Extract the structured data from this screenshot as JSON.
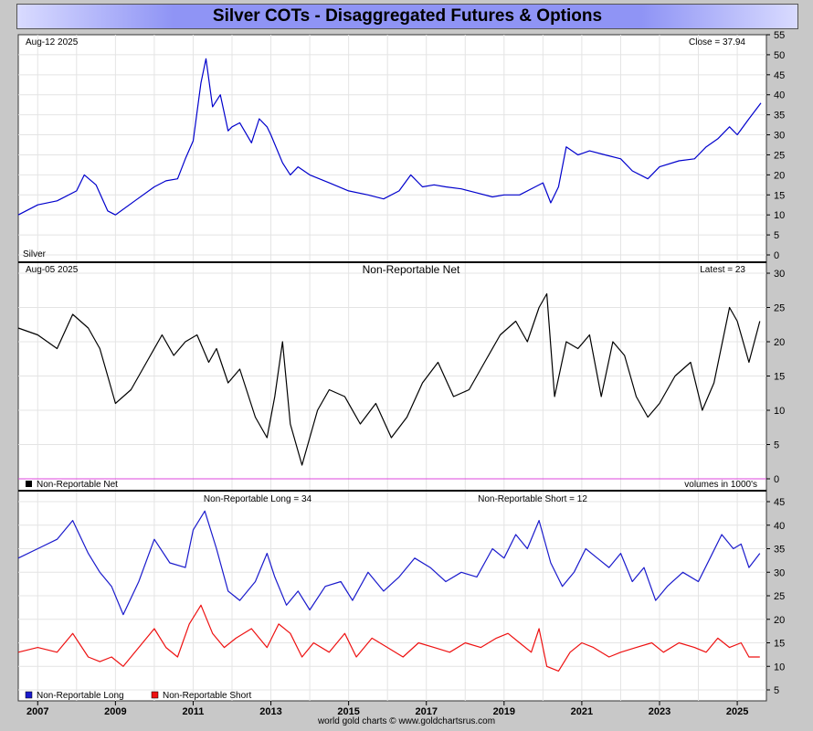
{
  "header": {
    "title": "Silver COTs - Disaggregated Futures & Options"
  },
  "footer": {
    "credit": "world gold charts © www.goldchartsrus.com"
  },
  "colors": {
    "price": "#0000cc",
    "net": "#000000",
    "long": "#1a1acc",
    "short": "#ee1111",
    "zero_line": "#dd44dd"
  },
  "chart_data": [
    {
      "type": "line",
      "name": "silver-price",
      "date_label": "Aug-12  2025",
      "corner_label": "Close = 37.94",
      "series_label": "Silver",
      "ylim": [
        0,
        55
      ],
      "yticks": [
        0,
        5,
        10,
        15,
        20,
        25,
        30,
        35,
        40,
        45,
        50,
        55
      ],
      "x": [
        2006.5,
        2007.0,
        2007.5,
        2008.0,
        2008.2,
        2008.5,
        2008.8,
        2009.0,
        2009.5,
        2010.0,
        2010.3,
        2010.6,
        2010.8,
        2011.0,
        2011.2,
        2011.33,
        2011.5,
        2011.7,
        2011.9,
        2012.0,
        2012.2,
        2012.5,
        2012.7,
        2012.9,
        2013.0,
        2013.3,
        2013.5,
        2013.7,
        2014.0,
        2014.5,
        2015.0,
        2015.5,
        2015.9,
        2016.3,
        2016.6,
        2016.9,
        2017.2,
        2017.5,
        2017.9,
        2018.3,
        2018.7,
        2019.0,
        2019.4,
        2019.8,
        2020.0,
        2020.2,
        2020.4,
        2020.6,
        2020.9,
        2021.2,
        2021.6,
        2022.0,
        2022.3,
        2022.7,
        2023.0,
        2023.5,
        2023.9,
        2024.2,
        2024.5,
        2024.8,
        2025.0,
        2025.3,
        2025.61
      ],
      "values": [
        10,
        12.5,
        13.5,
        16,
        20,
        17.5,
        11,
        10,
        13.5,
        17,
        18.5,
        19,
        24,
        28.5,
        43,
        49,
        37,
        40,
        31,
        32,
        33,
        28,
        34,
        32,
        30,
        23,
        20,
        22,
        20,
        18,
        16,
        15,
        14,
        16,
        20,
        17,
        17.5,
        17,
        16.5,
        15.5,
        14.5,
        15,
        15,
        17,
        18,
        13,
        17,
        27,
        25,
        26,
        25,
        24,
        21,
        19,
        22,
        23.5,
        24,
        27,
        29,
        32,
        30,
        34,
        37.94
      ],
      "xlim": [
        2006.5,
        2025.75
      ]
    },
    {
      "type": "line",
      "name": "non-reportable-net",
      "title": "Non-Reportable Net",
      "date_label": "Aug-05  2025",
      "corner_label": "Latest = 23",
      "legend": "Non-Reportable Net",
      "unit_note": "volumes in 1000's",
      "ylim": [
        0,
        30
      ],
      "yticks": [
        0,
        5,
        10,
        15,
        20,
        25,
        30
      ],
      "x": [
        2006.5,
        2007.0,
        2007.5,
        2007.9,
        2008.3,
        2008.6,
        2008.8,
        2009.0,
        2009.4,
        2009.8,
        2010.2,
        2010.5,
        2010.8,
        2011.1,
        2011.4,
        2011.6,
        2011.9,
        2012.2,
        2012.6,
        2012.9,
        2013.1,
        2013.3,
        2013.5,
        2013.8,
        2014.2,
        2014.5,
        2014.9,
        2015.3,
        2015.7,
        2016.1,
        2016.5,
        2016.9,
        2017.3,
        2017.7,
        2018.1,
        2018.5,
        2018.9,
        2019.3,
        2019.6,
        2019.9,
        2020.1,
        2020.3,
        2020.6,
        2020.9,
        2021.2,
        2021.5,
        2021.8,
        2022.1,
        2022.4,
        2022.7,
        2023.0,
        2023.4,
        2023.8,
        2024.1,
        2024.4,
        2024.8,
        2025.0,
        2025.3,
        2025.58
      ],
      "values": [
        22,
        21,
        19,
        24,
        22,
        19,
        15,
        11,
        13,
        17,
        21,
        18,
        20,
        21,
        17,
        19,
        14,
        16,
        9,
        6,
        12,
        20,
        8,
        2,
        10,
        13,
        12,
        8,
        11,
        6,
        9,
        14,
        17,
        12,
        13,
        17,
        21,
        23,
        20,
        25,
        27,
        12,
        20,
        19,
        21,
        12,
        20,
        18,
        12,
        9,
        11,
        15,
        17,
        10,
        14,
        25,
        23,
        17,
        23
      ],
      "xlim": [
        2006.5,
        2025.75
      ]
    },
    {
      "type": "line",
      "name": "non-reportable-long-short",
      "long_label": "Non-Reportable Long = 34",
      "short_label": "Non-Reportable Short = 12",
      "ylim": [
        5,
        45
      ],
      "yticks": [
        5,
        10,
        15,
        20,
        25,
        30,
        35,
        40,
        45
      ],
      "xticks": [
        "2007",
        "2009",
        "2011",
        "2013",
        "2015",
        "2017",
        "2019",
        "2021",
        "2023",
        "2025"
      ],
      "xtick_values": [
        2007,
        2009,
        2011,
        2013,
        2015,
        2017,
        2019,
        2021,
        2023,
        2025
      ],
      "xlim": [
        2006.5,
        2025.75
      ],
      "series": [
        {
          "name": "Non-Reportable Long",
          "x": [
            2006.5,
            2007.0,
            2007.5,
            2007.9,
            2008.3,
            2008.6,
            2008.9,
            2009.2,
            2009.6,
            2010.0,
            2010.4,
            2010.8,
            2011.0,
            2011.3,
            2011.6,
            2011.9,
            2012.2,
            2012.6,
            2012.9,
            2013.1,
            2013.4,
            2013.7,
            2014.0,
            2014.4,
            2014.8,
            2015.1,
            2015.5,
            2015.9,
            2016.3,
            2016.7,
            2017.1,
            2017.5,
            2017.9,
            2018.3,
            2018.7,
            2019.0,
            2019.3,
            2019.6,
            2019.9,
            2020.2,
            2020.5,
            2020.8,
            2021.1,
            2021.4,
            2021.7,
            2022.0,
            2022.3,
            2022.6,
            2022.9,
            2023.2,
            2023.6,
            2024.0,
            2024.3,
            2024.6,
            2024.9,
            2025.1,
            2025.3,
            2025.58
          ],
          "values": [
            33,
            35,
            37,
            41,
            34,
            30,
            27,
            21,
            28,
            37,
            32,
            31,
            39,
            43,
            35,
            26,
            24,
            28,
            34,
            29,
            23,
            26,
            22,
            27,
            28,
            24,
            30,
            26,
            29,
            33,
            31,
            28,
            30,
            29,
            35,
            33,
            38,
            35,
            41,
            32,
            27,
            30,
            35,
            33,
            31,
            34,
            28,
            31,
            24,
            27,
            30,
            28,
            33,
            38,
            35,
            36,
            31,
            34
          ]
        },
        {
          "name": "Non-Reportable Short",
          "x": [
            2006.5,
            2007.0,
            2007.5,
            2007.9,
            2008.3,
            2008.6,
            2008.9,
            2009.2,
            2009.6,
            2010.0,
            2010.3,
            2010.6,
            2010.9,
            2011.2,
            2011.5,
            2011.8,
            2012.1,
            2012.5,
            2012.9,
            2013.2,
            2013.5,
            2013.8,
            2014.1,
            2014.5,
            2014.9,
            2015.2,
            2015.6,
            2016.0,
            2016.4,
            2016.8,
            2017.2,
            2017.6,
            2018.0,
            2018.4,
            2018.8,
            2019.1,
            2019.4,
            2019.7,
            2019.9,
            2020.1,
            2020.4,
            2020.7,
            2021.0,
            2021.3,
            2021.7,
            2022.0,
            2022.4,
            2022.8,
            2023.1,
            2023.5,
            2023.9,
            2024.2,
            2024.5,
            2024.8,
            2025.1,
            2025.3,
            2025.58
          ],
          "values": [
            13,
            14,
            13,
            17,
            12,
            11,
            12,
            10,
            14,
            18,
            14,
            12,
            19,
            23,
            17,
            14,
            16,
            18,
            14,
            19,
            17,
            12,
            15,
            13,
            17,
            12,
            16,
            14,
            12,
            15,
            14,
            13,
            15,
            14,
            16,
            17,
            15,
            13,
            18,
            10,
            9,
            13,
            15,
            14,
            12,
            13,
            14,
            15,
            13,
            15,
            14,
            13,
            16,
            14,
            15,
            12,
            12
          ]
        }
      ]
    }
  ]
}
